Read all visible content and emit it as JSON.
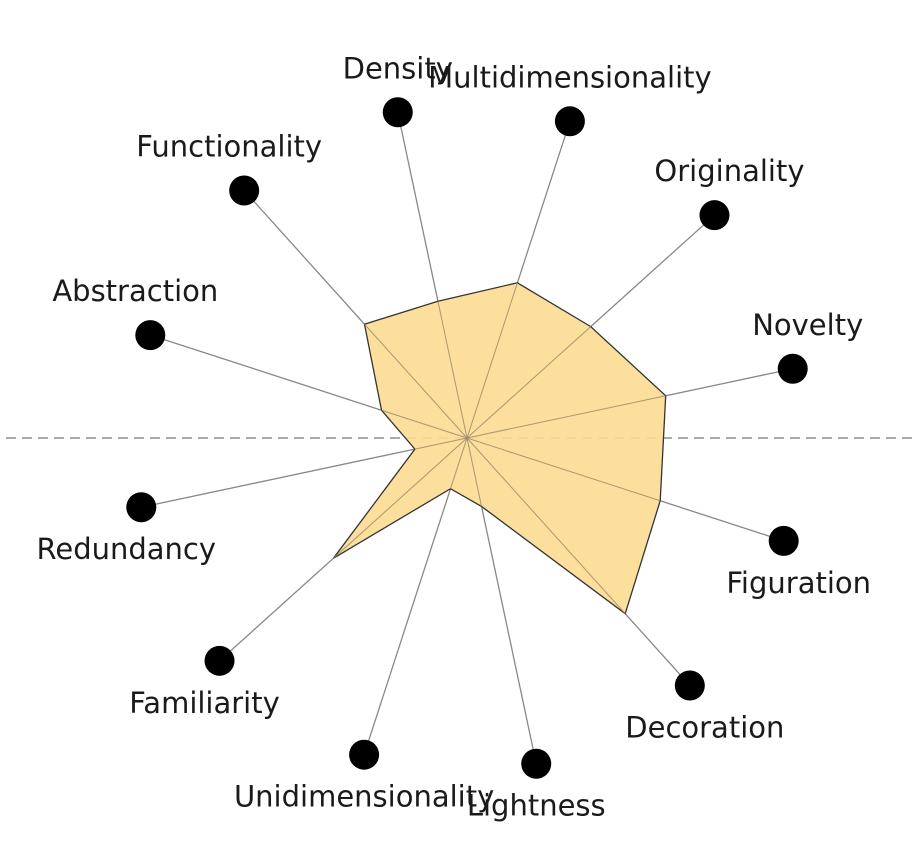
{
  "chart_data": {
    "type": "radar",
    "title": "",
    "axes": [
      "Multidimensionality",
      "Originality",
      "Novelty",
      "Figuration",
      "Decoration",
      "Lightness",
      "Unidimensionality",
      "Familiarity",
      "Redundancy",
      "Abstraction",
      "Functionality",
      "Density"
    ],
    "range": [
      0,
      1
    ],
    "series": [
      {
        "values": [
          0.49,
          0.5,
          0.61,
          0.61,
          0.71,
          0.21,
          0.16,
          0.54,
          0.16,
          0.27,
          0.46,
          0.42
        ],
        "color": "#fddc95",
        "stroke": "#333333"
      }
    ],
    "horizontal_reference_line": "dashed",
    "axis_marker_color": "#000000",
    "grid": false,
    "legend": "none"
  }
}
